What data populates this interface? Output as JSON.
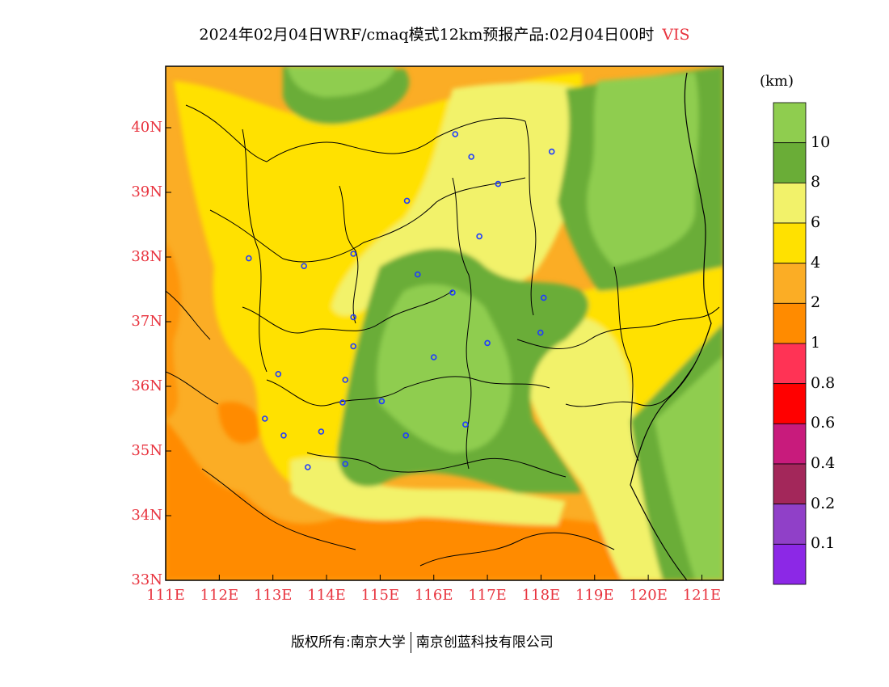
{
  "title": {
    "text": "2024年02月04日WRF/cmaq模式12km预报产品:02月04日00时",
    "variable": "VIS"
  },
  "axes": {
    "lat_labels": [
      "33N",
      "34N",
      "35N",
      "36N",
      "37N",
      "38N",
      "39N",
      "40N"
    ],
    "lon_labels": [
      "111E",
      "112E",
      "113E",
      "114E",
      "115E",
      "116E",
      "117E",
      "118E",
      "119E",
      "120E",
      "121E"
    ]
  },
  "colorbar": {
    "unit": "(km)",
    "labels": [
      "10",
      "8",
      "6",
      "4",
      "2",
      "1",
      "0.8",
      "0.6",
      "0.4",
      "0.2",
      "0.1"
    ],
    "colors": [
      "#8fcd4f",
      "#6aad37",
      "#f2f26a",
      "#ffe100",
      "#fbad25",
      "#ff8b00",
      "#ff3355",
      "#ff0000",
      "#c81b7c",
      "#a3275a",
      "#9040c8",
      "#8c28e6"
    ]
  },
  "cities": [
    {
      "lon": 116.4,
      "lat": 39.9
    },
    {
      "lon": 116.7,
      "lat": 39.55
    },
    {
      "lon": 117.2,
      "lat": 39.13
    },
    {
      "lon": 118.2,
      "lat": 39.63
    },
    {
      "lon": 115.5,
      "lat": 38.87
    },
    {
      "lon": 116.85,
      "lat": 38.32
    },
    {
      "lon": 112.55,
      "lat": 37.98
    },
    {
      "lon": 113.58,
      "lat": 37.86
    },
    {
      "lon": 114.5,
      "lat": 38.05
    },
    {
      "lon": 115.7,
      "lat": 37.73
    },
    {
      "lon": 116.35,
      "lat": 37.45
    },
    {
      "lon": 118.05,
      "lat": 37.37
    },
    {
      "lon": 114.5,
      "lat": 37.07
    },
    {
      "lon": 117.99,
      "lat": 36.83
    },
    {
      "lon": 114.5,
      "lat": 36.62
    },
    {
      "lon": 117.0,
      "lat": 36.67
    },
    {
      "lon": 116.0,
      "lat": 36.45
    },
    {
      "lon": 113.1,
      "lat": 36.19
    },
    {
      "lon": 114.35,
      "lat": 36.1
    },
    {
      "lon": 114.3,
      "lat": 35.75
    },
    {
      "lon": 115.03,
      "lat": 35.77
    },
    {
      "lon": 112.85,
      "lat": 35.5
    },
    {
      "lon": 113.2,
      "lat": 35.24
    },
    {
      "lon": 113.9,
      "lat": 35.3
    },
    {
      "lon": 115.48,
      "lat": 35.24
    },
    {
      "lon": 116.59,
      "lat": 35.41
    },
    {
      "lon": 114.35,
      "lat": 34.8
    },
    {
      "lon": 113.65,
      "lat": 34.75
    }
  ],
  "footer": {
    "copyright": "版权所有:南京大学",
    "company": "南京创蓝科技有限公司"
  }
}
